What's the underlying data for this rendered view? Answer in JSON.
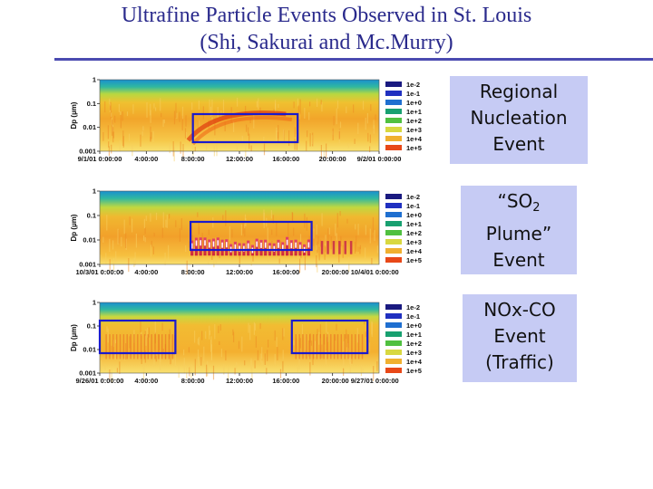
{
  "title": {
    "line1": "Ultrafine Particle Events Observed in St. Louis",
    "line2": "(Shi, Sakurai and Mc.Murry)"
  },
  "chart_data": [
    {
      "type": "heatmap",
      "ylabel": "Dp (µm)",
      "ylim": [
        0.001,
        1
      ],
      "y_scale": "log",
      "yticks": [
        "1",
        "0.1",
        "0.01",
        "0.001"
      ],
      "xticks": [
        "9/1/01 0:00:00",
        "4:00:00",
        "8:00:00",
        "12:00:00",
        "16:00:00",
        "20:00:00",
        "9/2/01 0:00:00"
      ],
      "legend": [
        "1e-2",
        "1e-1",
        "1e+0",
        "1e+1",
        "1e+2",
        "1e+3",
        "1e+4",
        "1e+5"
      ],
      "legend_colors": [
        "#1a1a80",
        "#2030c0",
        "#1f6fd0",
        "#18a070",
        "#50c040",
        "#d8d840",
        "#f0b030",
        "#e84818"
      ],
      "highlight_hours": [
        [
          8,
          17
        ]
      ],
      "event": {
        "line1": "Regional",
        "line2": "Nucleation",
        "line3": "Event"
      }
    },
    {
      "type": "heatmap",
      "ylabel": "Dp (µm)",
      "ylim": [
        0.001,
        1
      ],
      "y_scale": "log",
      "yticks": [
        "1",
        "0.1",
        "0.01",
        "0.001"
      ],
      "xticks": [
        "10/3/01 0:00:00",
        "4:00:00",
        "8:00:00",
        "12:00:00",
        "16:00:00",
        "20:00:00 10/4/01 0:00:00"
      ],
      "legend": [
        "1e-2",
        "1e-1",
        "1e+0",
        "1e+1",
        "1e+2",
        "1e+3",
        "1e+4",
        "1e+5"
      ],
      "legend_colors": [
        "#1a1a80",
        "#2030c0",
        "#1f6fd0",
        "#18a070",
        "#50c040",
        "#d8d840",
        "#f0b030",
        "#e84818"
      ],
      "highlight_hours": [
        [
          7.8,
          18.2
        ]
      ],
      "event": {
        "pre": "“SO",
        "sub": "2",
        "line2": "Plume”",
        "line3": "Event"
      }
    },
    {
      "type": "heatmap",
      "ylabel": "Dp (µm)",
      "ylim": [
        0.001,
        1
      ],
      "y_scale": "log",
      "yticks": [
        "1",
        "0.1",
        "0.01",
        "0.001"
      ],
      "xticks": [
        "9/26/01 0:00:00",
        "4:00:00",
        "8:00:00",
        "12:00:00",
        "16:00:00",
        "20:00:00 9/27/01 0:00:00"
      ],
      "legend": [
        "1e-2",
        "1e-1",
        "1e+0",
        "1e+1",
        "1e+2",
        "1e+3",
        "1e+4",
        "1e+5"
      ],
      "legend_colors": [
        "#1a1a80",
        "#2030c0",
        "#1f6fd0",
        "#18a070",
        "#50c040",
        "#d8d840",
        "#f0b030",
        "#e84818"
      ],
      "highlight_hours": [
        [
          0,
          6.5
        ],
        [
          16.5,
          23
        ]
      ],
      "event": {
        "line1": "NOx-CO",
        "line2": "Event",
        "line3": "(Traffic)"
      }
    }
  ]
}
